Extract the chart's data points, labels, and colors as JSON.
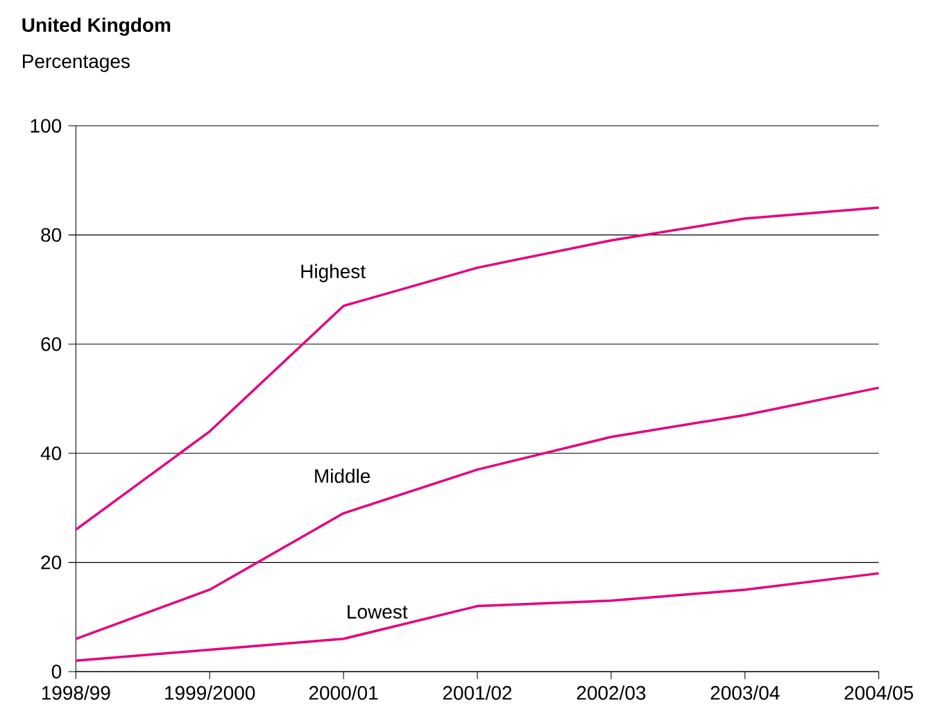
{
  "chart_data": {
    "type": "line",
    "title": "United Kingdom",
    "ylabel": "Percentages",
    "categories": [
      "1998/99",
      "1999/2000",
      "2000/01",
      "2001/02",
      "2002/03",
      "2003/04",
      "2004/05"
    ],
    "series": [
      {
        "name": "Highest",
        "color": "#e5007d",
        "values": [
          26,
          44,
          67,
          74,
          79,
          83,
          85
        ]
      },
      {
        "name": "Middle",
        "color": "#e5007d",
        "values": [
          6,
          15,
          29,
          37,
          43,
          47,
          52
        ]
      },
      {
        "name": "Lowest",
        "color": "#e5007d",
        "values": [
          2,
          4,
          6,
          12,
          13,
          15,
          18
        ]
      }
    ],
    "ylim": [
      0,
      100
    ],
    "yticks": [
      0,
      20,
      40,
      60,
      80,
      100
    ],
    "grid": "y",
    "legend": false,
    "marker": "none",
    "line_style": "solid"
  }
}
